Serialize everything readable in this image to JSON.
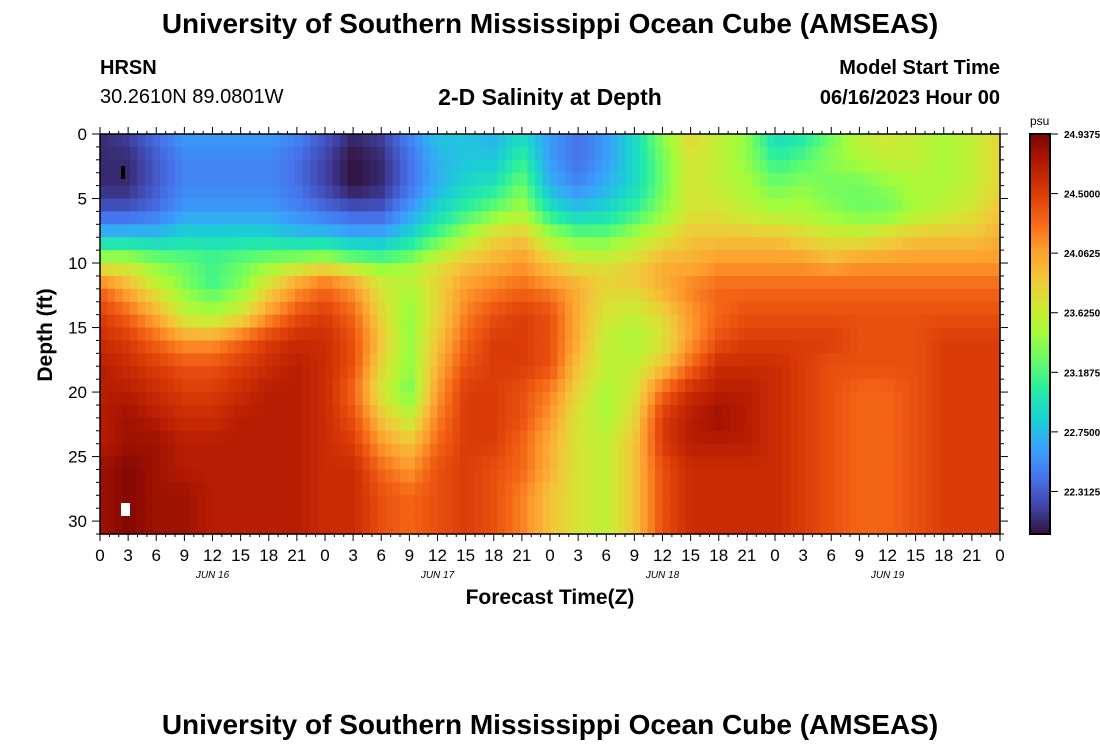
{
  "header": {
    "title": "University of Southern Mississippi Ocean Cube (AMSEAS)",
    "station_id": "HRSN",
    "coords": "30.2610N  89.0801W",
    "chart_title": "2-D Salinity at Depth",
    "model_start_label": "Model Start Time",
    "model_start_value": "06/16/2023 Hour 00"
  },
  "footer": {
    "title": "University of Southern Mississippi Ocean Cube (AMSEAS)"
  },
  "colors": {
    "colormap": [
      "#30123b",
      "#4145ab",
      "#4675ed",
      "#39a2fc",
      "#1bcfd4",
      "#24eca6",
      "#61fc6c",
      "#a4fc3b",
      "#d1e834",
      "#f3c63a",
      "#fe9b2d",
      "#f36315",
      "#d93806",
      "#b11901",
      "#7a0402"
    ]
  },
  "chart_data": {
    "type": "heatmap",
    "title": "2-D Salinity at Depth",
    "xlabel": "Forecast Time(Z)",
    "ylabel": "Depth (ft)",
    "x_range_hours": [
      0,
      96
    ],
    "x_tick_step_hours": 3,
    "x_tick_labels": [
      "0",
      "3",
      "6",
      "9",
      "12",
      "15",
      "18",
      "21",
      "0",
      "3",
      "6",
      "9",
      "12",
      "15",
      "18",
      "21",
      "0",
      "3",
      "6",
      "9",
      "12",
      "15",
      "18",
      "21",
      "0",
      "3",
      "6",
      "9",
      "12",
      "15",
      "18",
      "21",
      "0"
    ],
    "date_labels": [
      {
        "hour": 12,
        "label": "JUN 16"
      },
      {
        "hour": 36,
        "label": "JUN 17"
      },
      {
        "hour": 60,
        "label": "JUN 18"
      },
      {
        "hour": 84,
        "label": "JUN 19"
      }
    ],
    "y_range_ft": [
      0,
      31
    ],
    "y_tick_values": [
      0,
      5,
      10,
      15,
      20,
      25,
      30
    ],
    "y_tick_labels": [
      "0",
      "5",
      "10",
      "15",
      "20",
      "25",
      "30"
    ],
    "colorbar": {
      "units": "psu",
      "min": 22.0,
      "max": 24.9375,
      "tick_values": [
        24.9375,
        24.5,
        24.0625,
        23.625,
        23.1875,
        22.75,
        22.3125
      ],
      "tick_labels": [
        "24.9375",
        "24.5000",
        "24.0625",
        "23.6250",
        "23.1875",
        "22.7500",
        "22.3125"
      ]
    },
    "depth_samples_ft": [
      0,
      2,
      4,
      6,
      8,
      10,
      11,
      12,
      14,
      16,
      18,
      20,
      22,
      24,
      26,
      28,
      31
    ],
    "time_samples_hours": [
      0,
      3,
      6,
      9,
      12,
      15,
      18,
      21,
      24,
      27,
      30,
      33,
      36,
      39,
      42,
      45,
      48,
      51,
      54,
      57,
      60,
      63,
      66,
      69,
      72,
      75,
      78,
      81,
      84,
      87,
      90,
      93,
      96
    ],
    "salinity_psu": [
      [
        22.1,
        22.2,
        22.4,
        22.6,
        22.6,
        22.6,
        22.6,
        22.5,
        22.3,
        22.1,
        22.2,
        22.5,
        22.8,
        22.8,
        22.7,
        22.9,
        22.6,
        22.4,
        22.6,
        22.9,
        23.4,
        23.8,
        23.6,
        23.4,
        22.9,
        23.0,
        23.3,
        23.6,
        23.7,
        23.6,
        23.5,
        23.6,
        23.8
      ],
      [
        22.1,
        22.1,
        22.3,
        22.5,
        22.5,
        22.5,
        22.5,
        22.4,
        22.2,
        22.0,
        22.1,
        22.4,
        22.7,
        22.8,
        22.8,
        23.1,
        22.6,
        22.4,
        22.6,
        22.9,
        23.3,
        23.7,
        23.6,
        23.4,
        23.1,
        23.2,
        23.4,
        23.5,
        23.6,
        23.6,
        23.5,
        23.6,
        23.8
      ],
      [
        22.1,
        22.1,
        22.3,
        22.5,
        22.5,
        22.5,
        22.5,
        22.4,
        22.2,
        22.0,
        22.1,
        22.4,
        22.7,
        22.9,
        23.0,
        23.3,
        22.7,
        22.5,
        22.7,
        22.9,
        23.3,
        23.7,
        23.6,
        23.5,
        23.3,
        23.4,
        23.3,
        23.3,
        23.4,
        23.5,
        23.5,
        23.6,
        23.8
      ],
      [
        22.3,
        22.3,
        22.4,
        22.6,
        22.6,
        22.6,
        22.6,
        22.5,
        22.4,
        22.3,
        22.3,
        22.6,
        22.9,
        23.1,
        23.3,
        23.5,
        23.0,
        22.8,
        22.9,
        23.1,
        23.4,
        23.7,
        23.7,
        23.6,
        23.5,
        23.5,
        23.4,
        23.3,
        23.3,
        23.5,
        23.6,
        23.7,
        23.9
      ],
      [
        22.8,
        22.8,
        22.8,
        22.9,
        22.9,
        22.9,
        22.9,
        22.8,
        22.8,
        22.7,
        22.7,
        22.9,
        23.2,
        23.5,
        23.8,
        23.9,
        23.5,
        23.3,
        23.3,
        23.5,
        23.7,
        23.9,
        23.9,
        23.9,
        23.9,
        23.8,
        23.7,
        23.7,
        23.8,
        23.9,
        23.9,
        23.9,
        24.0
      ],
      [
        23.6,
        23.6,
        23.4,
        23.3,
        23.2,
        23.3,
        23.4,
        23.5,
        23.6,
        23.4,
        23.3,
        23.4,
        23.7,
        23.9,
        24.0,
        24.1,
        23.9,
        23.7,
        23.7,
        23.8,
        24.0,
        24.0,
        24.1,
        24.1,
        24.1,
        24.1,
        24.0,
        24.1,
        24.1,
        24.1,
        24.1,
        24.1,
        24.1
      ],
      [
        24.0,
        23.8,
        23.5,
        23.3,
        23.1,
        23.3,
        23.6,
        23.9,
        24.1,
        23.9,
        23.6,
        23.6,
        23.8,
        24.0,
        24.1,
        24.2,
        24.0,
        23.9,
        23.8,
        23.9,
        24.0,
        24.1,
        24.2,
        24.2,
        24.2,
        24.2,
        24.2,
        24.2,
        24.2,
        24.2,
        24.2,
        24.2,
        24.2
      ],
      [
        24.3,
        24.0,
        23.7,
        23.4,
        23.2,
        23.4,
        23.8,
        24.1,
        24.3,
        24.1,
        23.7,
        23.5,
        23.8,
        24.1,
        24.2,
        24.3,
        24.2,
        24.0,
        23.8,
        23.8,
        24.0,
        24.2,
        24.3,
        24.3,
        24.3,
        24.3,
        24.3,
        24.3,
        24.3,
        24.3,
        24.3,
        24.3,
        24.3
      ],
      [
        24.5,
        24.3,
        24.0,
        23.6,
        23.5,
        23.7,
        24.1,
        24.4,
        24.5,
        24.3,
        23.8,
        23.4,
        23.8,
        24.2,
        24.4,
        24.5,
        24.4,
        24.0,
        23.7,
        23.6,
        23.8,
        24.1,
        24.3,
        24.4,
        24.4,
        24.4,
        24.4,
        24.4,
        24.4,
        24.4,
        24.4,
        24.4,
        24.4
      ],
      [
        24.6,
        24.5,
        24.3,
        24.1,
        24.1,
        24.3,
        24.5,
        24.6,
        24.6,
        24.4,
        23.9,
        23.4,
        23.9,
        24.3,
        24.5,
        24.5,
        24.4,
        24.0,
        23.6,
        23.5,
        23.7,
        24.1,
        24.4,
        24.5,
        24.5,
        24.5,
        24.5,
        24.4,
        24.4,
        24.4,
        24.5,
        24.5,
        24.5
      ],
      [
        24.7,
        24.6,
        24.5,
        24.4,
        24.4,
        24.5,
        24.6,
        24.7,
        24.6,
        24.4,
        23.8,
        23.4,
        24.0,
        24.4,
        24.5,
        24.5,
        24.4,
        23.9,
        23.6,
        23.6,
        23.9,
        24.3,
        24.6,
        24.6,
        24.6,
        24.5,
        24.4,
        24.4,
        24.4,
        24.4,
        24.5,
        24.5,
        24.5
      ],
      [
        24.7,
        24.7,
        24.6,
        24.5,
        24.5,
        24.6,
        24.7,
        24.7,
        24.6,
        24.3,
        23.7,
        23.3,
        24.1,
        24.5,
        24.5,
        24.4,
        24.2,
        23.8,
        23.5,
        23.7,
        24.3,
        24.6,
        24.7,
        24.7,
        24.6,
        24.5,
        24.4,
        24.3,
        24.3,
        24.4,
        24.5,
        24.5,
        24.5
      ],
      [
        24.7,
        24.8,
        24.7,
        24.6,
        24.6,
        24.7,
        24.7,
        24.7,
        24.6,
        24.4,
        23.9,
        23.6,
        24.2,
        24.5,
        24.5,
        24.4,
        24.1,
        23.7,
        23.5,
        23.8,
        24.5,
        24.7,
        24.8,
        24.7,
        24.6,
        24.5,
        24.4,
        24.3,
        24.3,
        24.4,
        24.5,
        24.5,
        24.5
      ],
      [
        24.7,
        24.8,
        24.8,
        24.7,
        24.7,
        24.7,
        24.7,
        24.7,
        24.6,
        24.5,
        24.1,
        23.9,
        24.3,
        24.5,
        24.5,
        24.3,
        24.0,
        23.7,
        23.6,
        23.9,
        24.5,
        24.7,
        24.7,
        24.7,
        24.6,
        24.5,
        24.4,
        24.3,
        24.3,
        24.4,
        24.5,
        24.5,
        24.5
      ],
      [
        24.8,
        24.9,
        24.8,
        24.7,
        24.7,
        24.7,
        24.7,
        24.7,
        24.6,
        24.6,
        24.3,
        24.1,
        24.4,
        24.5,
        24.4,
        24.3,
        24.0,
        23.7,
        23.6,
        23.9,
        24.4,
        24.6,
        24.6,
        24.6,
        24.6,
        24.5,
        24.4,
        24.3,
        24.3,
        24.4,
        24.5,
        24.5,
        24.5
      ],
      [
        24.8,
        24.9,
        24.8,
        24.8,
        24.7,
        24.7,
        24.7,
        24.7,
        24.6,
        24.6,
        24.4,
        24.3,
        24.4,
        24.5,
        24.4,
        24.2,
        23.9,
        23.7,
        23.6,
        23.9,
        24.4,
        24.6,
        24.6,
        24.6,
        24.6,
        24.5,
        24.4,
        24.3,
        24.3,
        24.4,
        24.5,
        24.5,
        24.5
      ],
      [
        24.8,
        24.9,
        24.8,
        24.8,
        24.7,
        24.7,
        24.7,
        24.7,
        24.6,
        24.6,
        24.4,
        24.3,
        24.4,
        24.5,
        24.4,
        24.2,
        23.9,
        23.7,
        23.6,
        23.9,
        24.4,
        24.6,
        24.6,
        24.6,
        24.6,
        24.5,
        24.4,
        24.3,
        24.3,
        24.4,
        24.5,
        24.5,
        24.5
      ]
    ]
  }
}
